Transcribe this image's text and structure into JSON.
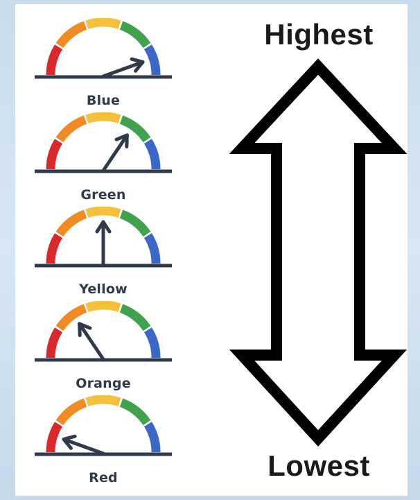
{
  "gauges": [
    {
      "label": "Blue",
      "level_angle_deg": 18
    },
    {
      "label": "Green",
      "level_angle_deg": 55
    },
    {
      "label": "Yellow",
      "level_angle_deg": 90
    },
    {
      "label": "Orange",
      "level_angle_deg": 125
    },
    {
      "label": "Red",
      "level_angle_deg": 162
    }
  ],
  "segment_colors": {
    "red": "#d9292b",
    "orange": "#f08a24",
    "yellow": "#f6c13a",
    "green": "#3fa34d",
    "blue": "#3b67c9"
  },
  "needle_color": "#2f3b4a",
  "arrow": {
    "top_label": "Highest",
    "bottom_label": "Lowest"
  }
}
